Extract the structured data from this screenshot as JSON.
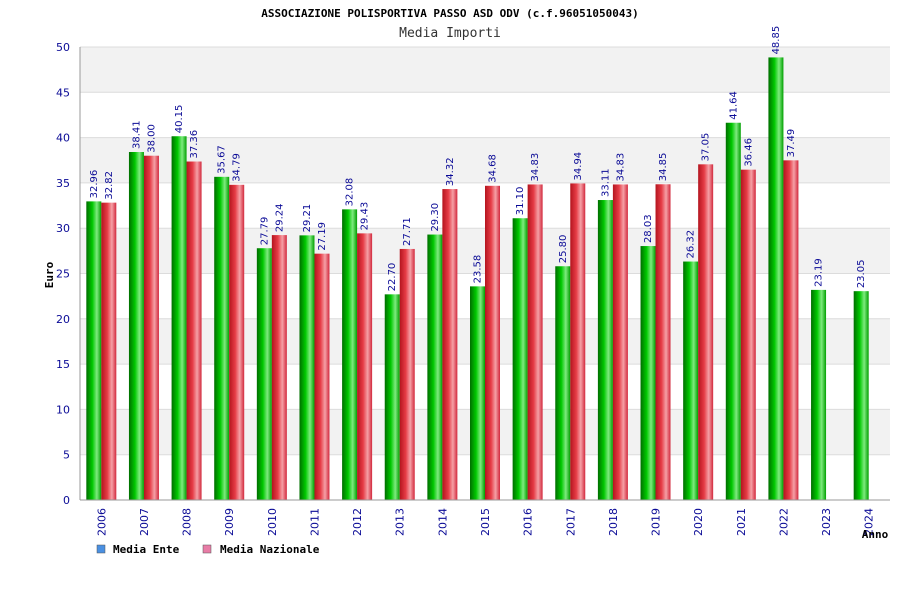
{
  "colors": {
    "series_ente": "#00b400",
    "series_nazionale": "#e6323c",
    "legend_ente": "#4a90e2",
    "legend_nazionale": "#e87ca6",
    "band": "#f2f2f2",
    "axis_text": "#0a0a96"
  },
  "chart_data": {
    "type": "bar",
    "title": "ASSOCIAZIONE POLISPORTIVA PASSO ASD ODV (c.f.96051050043)",
    "subtitle": "Media Importi",
    "xlabel": "Anno",
    "ylabel": "Euro",
    "ylim": [
      0,
      50
    ],
    "yticks": [
      "0",
      "5",
      "10",
      "15",
      "20",
      "25",
      "30",
      "35",
      "40",
      "45",
      "50"
    ],
    "grid": true,
    "legend_position": "bottom-left",
    "categories": [
      "2006",
      "2007",
      "2008",
      "2009",
      "2010",
      "2011",
      "2012",
      "2013",
      "2014",
      "2015",
      "2016",
      "2017",
      "2018",
      "2019",
      "2020",
      "2021",
      "2022",
      "2023",
      "2024"
    ],
    "series": [
      {
        "name": "Media Ente",
        "values": [
          32.96,
          38.41,
          40.15,
          35.67,
          27.79,
          29.21,
          32.08,
          22.7,
          29.3,
          23.58,
          31.1,
          25.8,
          33.11,
          28.03,
          26.32,
          41.64,
          48.85,
          23.19,
          23.05
        ],
        "labels": [
          "32.96",
          "38.41",
          "40.15",
          "35.67",
          "27.79",
          "29.21",
          "32.08",
          "22.70",
          "29.30",
          "23.58",
          "31.10",
          "25.80",
          "33.11",
          "28.03",
          "26.32",
          "41.64",
          "48.85",
          "23.19",
          "23.05"
        ]
      },
      {
        "name": "Media Nazionale",
        "values": [
          32.82,
          38.0,
          37.36,
          34.79,
          29.24,
          27.19,
          29.43,
          27.71,
          34.32,
          34.68,
          34.83,
          34.94,
          34.83,
          34.85,
          37.05,
          36.46,
          37.49,
          null,
          null
        ],
        "labels": [
          "32.82",
          "38.00",
          "37.36",
          "34.79",
          "29.24",
          "27.19",
          "29.43",
          "27.71",
          "34.32",
          "34.68",
          "34.83",
          "34.94",
          "34.83",
          "34.85",
          "37.05",
          "36.46",
          "37.49",
          null,
          null
        ]
      }
    ]
  }
}
